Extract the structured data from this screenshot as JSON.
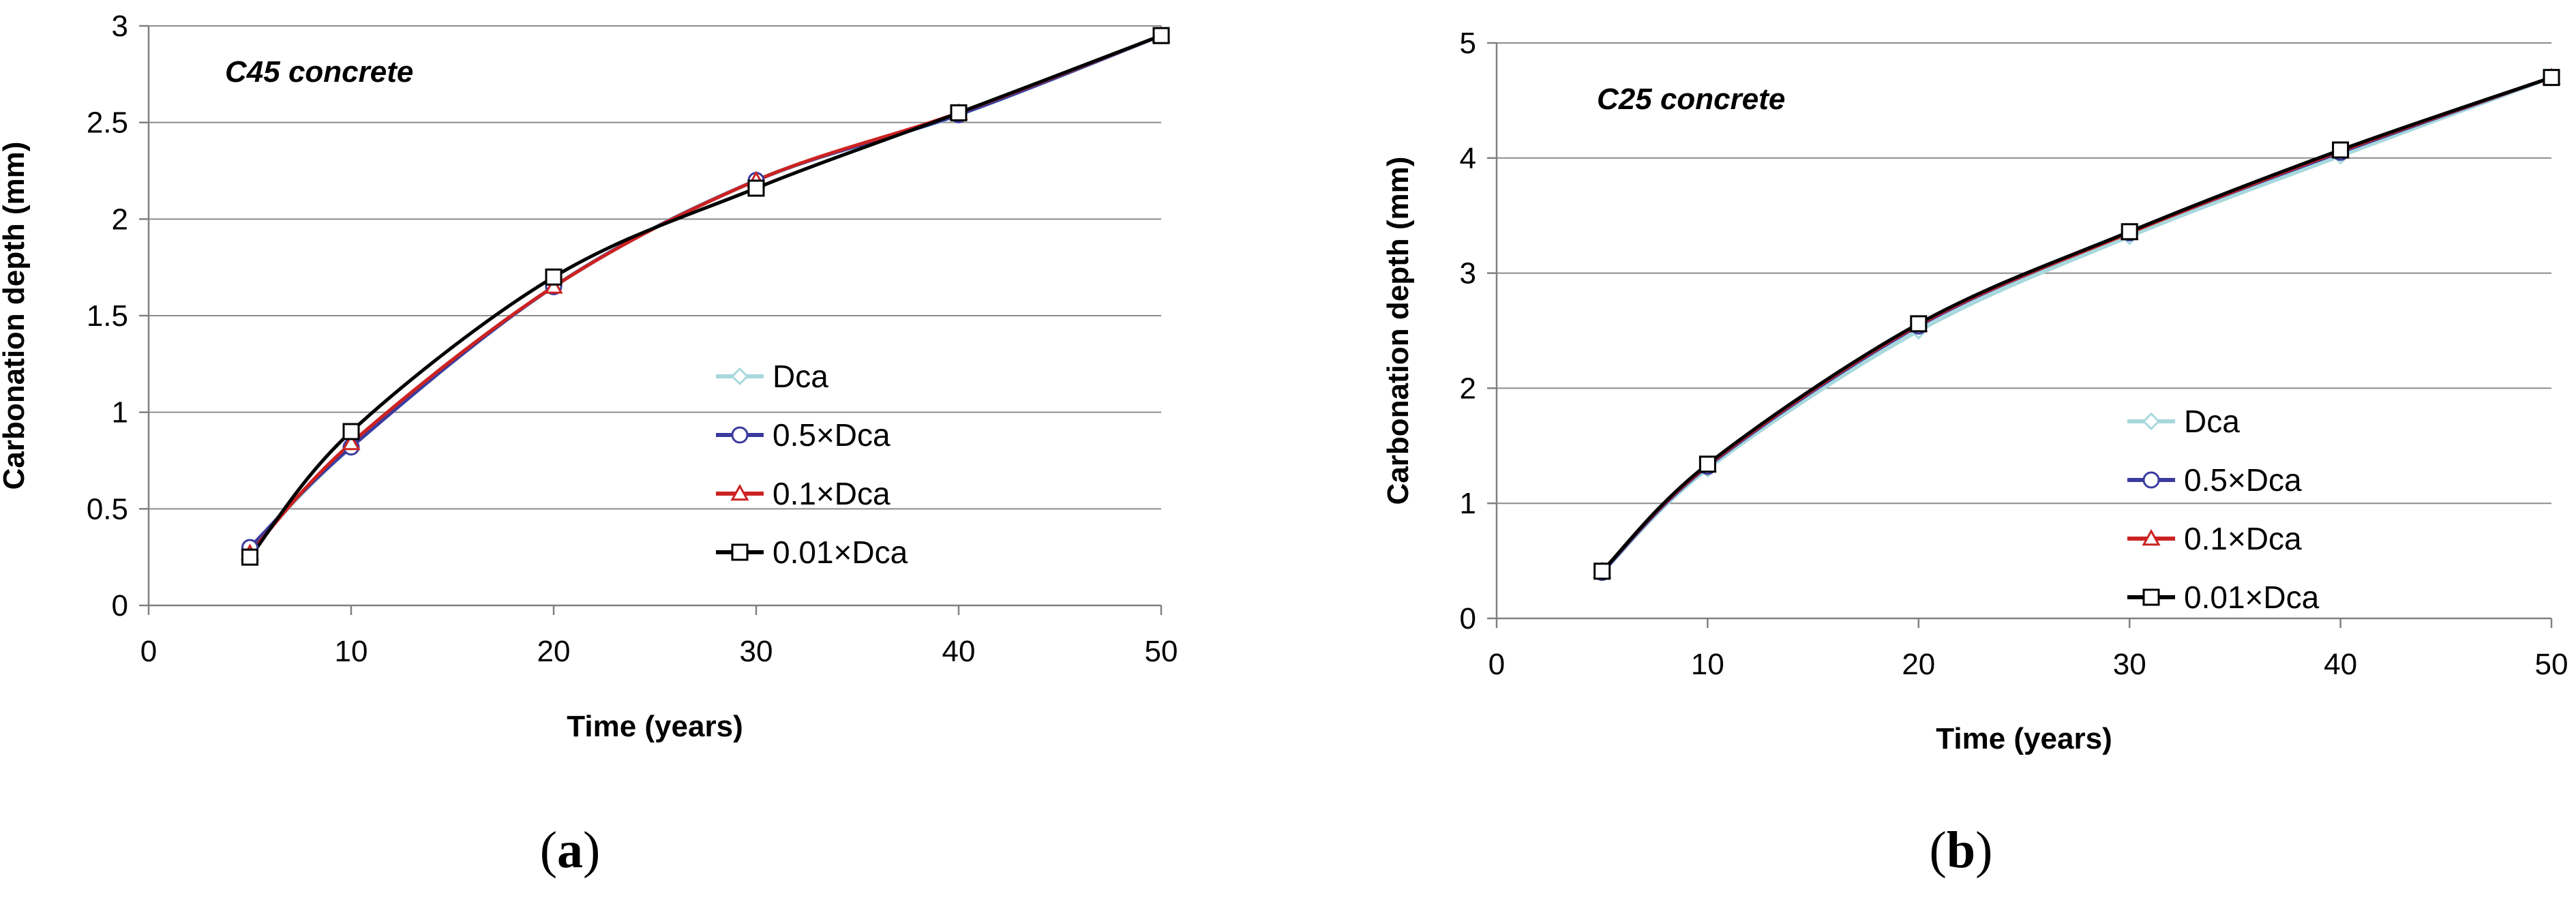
{
  "chart_data": [
    {
      "type": "line",
      "panel_label": "a",
      "annotation": "C45 concrete",
      "xlabel": "Time (years)",
      "ylabel": "Carbonation depth (mm)",
      "xlim": [
        0,
        50
      ],
      "ylim": [
        0,
        3
      ],
      "xticks": [
        0,
        10,
        20,
        30,
        40,
        50
      ],
      "yticks": [
        0,
        0.5,
        1,
        1.5,
        2,
        2.5,
        3
      ],
      "ytick_labels": [
        "0",
        "0.5",
        "1",
        "1.5",
        "2",
        "2.5",
        "3"
      ],
      "grid": true,
      "legend_position": "center-right",
      "x": [
        5,
        10,
        20,
        30,
        40,
        50
      ],
      "series": [
        {
          "name": "Dca",
          "color": "#a7d8dc",
          "marker": "diamond",
          "values": [
            0.29,
            0.82,
            1.65,
            2.2,
            2.54,
            2.95
          ]
        },
        {
          "name": "0.5×Dca",
          "color": "#3b3b9e",
          "marker": "circle",
          "values": [
            0.3,
            0.82,
            1.65,
            2.2,
            2.54,
            2.95
          ]
        },
        {
          "name": "0.1×Dca",
          "color": "#cc2222",
          "marker": "triangle",
          "values": [
            0.27,
            0.84,
            1.65,
            2.2,
            2.55,
            2.95
          ]
        },
        {
          "name": "0.01×Dca",
          "color": "#000000",
          "marker": "square",
          "values": [
            0.25,
            0.9,
            1.7,
            2.16,
            2.55,
            2.95
          ]
        }
      ]
    },
    {
      "type": "line",
      "panel_label": "b",
      "annotation": "C25 concrete",
      "xlabel": "Time (years)",
      "ylabel": "Carbonation depth (mm)",
      "xlim": [
        0,
        50
      ],
      "ylim": [
        0,
        5
      ],
      "xticks": [
        0,
        10,
        20,
        30,
        40,
        50
      ],
      "yticks": [
        0,
        1,
        2,
        3,
        4,
        5
      ],
      "ytick_labels": [
        "0",
        "1",
        "2",
        "3",
        "4",
        "5"
      ],
      "grid": true,
      "legend_position": "center-right",
      "x": [
        5,
        10,
        20,
        30,
        40,
        50
      ],
      "series": [
        {
          "name": "Dca",
          "color": "#a7d8dc",
          "marker": "diamond",
          "values": [
            0.4,
            1.3,
            2.5,
            3.32,
            4.02,
            4.7
          ]
        },
        {
          "name": "0.5×Dca",
          "color": "#3b3b9e",
          "marker": "circle",
          "values": [
            0.4,
            1.32,
            2.54,
            3.35,
            4.05,
            4.7
          ]
        },
        {
          "name": "0.1×Dca",
          "color": "#cc2222",
          "marker": "triangle",
          "values": [
            0.41,
            1.33,
            2.55,
            3.35,
            4.06,
            4.7
          ]
        },
        {
          "name": "0.01×Dca",
          "color": "#000000",
          "marker": "square",
          "values": [
            0.41,
            1.34,
            2.56,
            3.36,
            4.07,
            4.7
          ]
        }
      ]
    }
  ]
}
